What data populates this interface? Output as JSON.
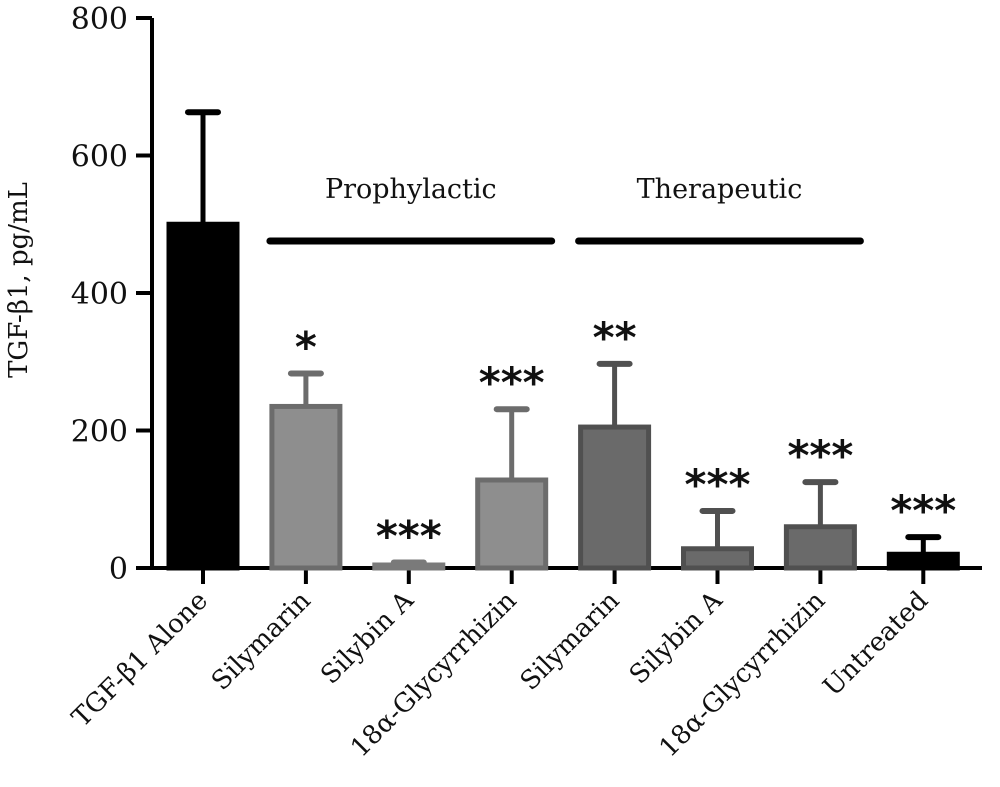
{
  "chart_data": {
    "type": "bar",
    "title": "",
    "ylabel": "TGF-β1, pg/mL",
    "xlabel": "",
    "ylim": [
      0,
      800
    ],
    "yticks": [
      0,
      200,
      400,
      600,
      800
    ],
    "categories": [
      "TGF-β1 Alone",
      "Silymarin",
      "Silybin A",
      "18α-Glycyrrhizin",
      "Silymarin",
      "Silybin A",
      "18α-Glycyrrhizin",
      "Untreated"
    ],
    "values": [
      500,
      235,
      3,
      128,
      205,
      28,
      60,
      20
    ],
    "errors": [
      163,
      48,
      5,
      103,
      92,
      55,
      65,
      25
    ],
    "significance": [
      "",
      "*",
      "***",
      "***",
      "**",
      "***",
      "***",
      "***"
    ],
    "colors": {
      "fills": [
        "#000000",
        "#8e8e8e",
        "#9a9a9a",
        "#8e8e8e",
        "#6a6a6a",
        "#6a6a6a",
        "#6a6a6a",
        "#000000"
      ],
      "strokes": [
        "#000000",
        "#6c6c6c",
        "#7a7a7a",
        "#6c6c6c",
        "#505050",
        "#505050",
        "#505050",
        "#000000"
      ],
      "errors": [
        "#000000",
        "#6c6c6c",
        "#7a7a7a",
        "#6c6c6c",
        "#505050",
        "#505050",
        "#505050",
        "#000000"
      ],
      "axis": "#000000"
    },
    "groups": [
      {
        "label": "Prophylactic",
        "from": 1,
        "to": 3
      },
      {
        "label": "Therapeutic",
        "from": 4,
        "to": 6
      }
    ],
    "grid": false,
    "legend": "none"
  }
}
